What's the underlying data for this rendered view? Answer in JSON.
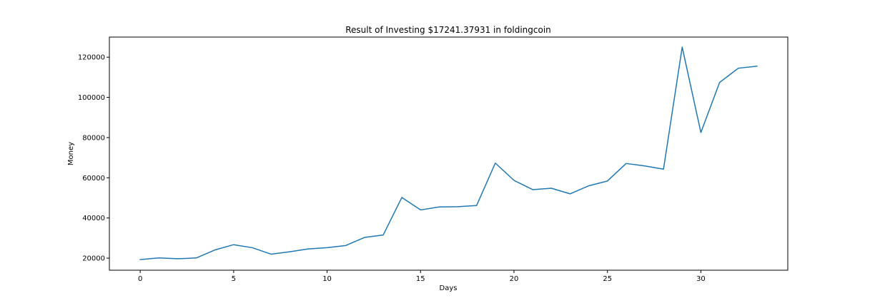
{
  "chart_data": {
    "type": "line",
    "title": "Result of Investing $17241.37931 in foldingcoin",
    "xlabel": "Days",
    "ylabel": "Money",
    "xlim": [
      -1.65,
      34.65
    ],
    "ylim": [
      14000,
      130000
    ],
    "xticks": [
      0,
      5,
      10,
      15,
      20,
      25,
      30
    ],
    "yticks": [
      20000,
      40000,
      60000,
      80000,
      100000,
      120000
    ],
    "grid": false,
    "line_color": "#1f77b4",
    "series": [
      {
        "x": [
          0,
          1,
          2,
          3,
          4,
          5,
          6,
          7,
          8,
          9,
          10,
          11,
          12,
          13,
          14,
          15,
          16,
          17,
          18,
          19,
          20,
          21,
          22,
          23,
          24,
          25,
          26,
          27,
          28,
          29,
          30,
          31,
          32,
          33
        ],
        "values": [
          19300,
          20100,
          19700,
          20100,
          24100,
          26700,
          25200,
          22000,
          23200,
          24600,
          25200,
          26300,
          30300,
          31500,
          50200,
          44000,
          45500,
          45600,
          46200,
          67300,
          58700,
          54100,
          54800,
          52000,
          56000,
          58400,
          67100,
          65900,
          64300,
          125000,
          82500,
          107400,
          114500,
          115500
        ]
      }
    ]
  }
}
